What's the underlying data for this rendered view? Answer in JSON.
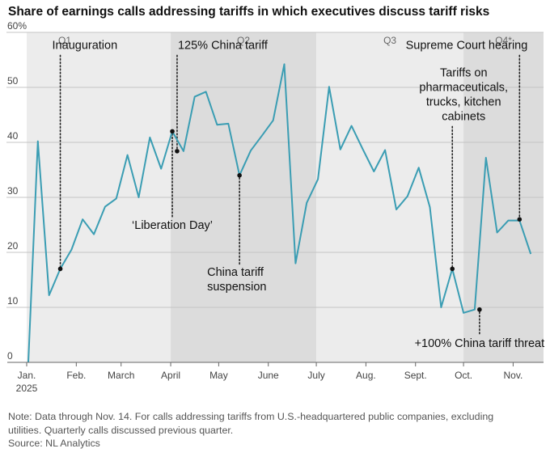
{
  "title": "Share of earnings calls addressing tariffs in which executives discuss tariff risks",
  "note": [
    "Note: Data through Nov. 14. For calls addressing tariffs from U.S.-headquartered public companies, excluding",
    "utilities. Quarterly calls discussed previous quarter."
  ],
  "source": "Source: NL Analytics",
  "chart_data": {
    "type": "line",
    "title": "Share of earnings calls addressing tariffs in which executives discuss tariff risks",
    "xlabel": "",
    "ylabel": "",
    "x_domain": [
      "2025-01-01",
      "2025-11-20"
    ],
    "ylim": [
      0,
      60
    ],
    "yticks": [
      0,
      10,
      20,
      30,
      40,
      50,
      60
    ],
    "ytick_labels": [
      "0",
      "10",
      "20",
      "30",
      "40",
      "50",
      "60%"
    ],
    "xticks": [
      {
        "date": "2025-01-01",
        "label": "Jan."
      },
      {
        "date": "2025-02-01",
        "label": "Feb."
      },
      {
        "date": "2025-03-01",
        "label": "March"
      },
      {
        "date": "2025-04-01",
        "label": "April"
      },
      {
        "date": "2025-05-01",
        "label": "May"
      },
      {
        "date": "2025-06-01",
        "label": "June"
      },
      {
        "date": "2025-07-01",
        "label": "July"
      },
      {
        "date": "2025-08-01",
        "label": "Aug."
      },
      {
        "date": "2025-09-01",
        "label": "Sept."
      },
      {
        "date": "2025-10-01",
        "label": "Oct."
      },
      {
        "date": "2025-11-01",
        "label": "Nov."
      }
    ],
    "year_label": "2025",
    "grid": true,
    "quarters": [
      {
        "label": "Q1",
        "start": "2025-01-01",
        "end": "2025-04-01",
        "shade": "#ececec"
      },
      {
        "label": "Q2",
        "start": "2025-04-01",
        "end": "2025-07-01",
        "shade": "#dcdcdc"
      },
      {
        "label": "Q3",
        "start": "2025-07-01",
        "end": "2025-10-01",
        "shade": "#ececec"
      },
      {
        "label": "Q4*",
        "start": "2025-10-01",
        "end": "2025-11-20",
        "shade": "#dcdcdc"
      }
    ],
    "series": [
      {
        "color": "#3a9db3",
        "points": [
          {
            "x": "2025-01-02",
            "y": 0
          },
          {
            "x": "2025-01-08",
            "y": 40.2
          },
          {
            "x": "2025-01-15",
            "y": 12.2
          },
          {
            "x": "2025-01-22",
            "y": 17
          },
          {
            "x": "2025-01-29",
            "y": 20.5
          },
          {
            "x": "2025-02-05",
            "y": 26
          },
          {
            "x": "2025-02-12",
            "y": 23.3
          },
          {
            "x": "2025-02-19",
            "y": 28.3
          },
          {
            "x": "2025-02-26",
            "y": 29.8
          },
          {
            "x": "2025-03-05",
            "y": 37.7
          },
          {
            "x": "2025-03-12",
            "y": 30
          },
          {
            "x": "2025-03-19",
            "y": 40.9
          },
          {
            "x": "2025-03-26",
            "y": 35.2
          },
          {
            "x": "2025-04-02",
            "y": 42
          },
          {
            "x": "2025-04-09",
            "y": 38.4
          },
          {
            "x": "2025-04-16",
            "y": 48.3
          },
          {
            "x": "2025-04-23",
            "y": 49.2
          },
          {
            "x": "2025-04-30",
            "y": 43.2
          },
          {
            "x": "2025-05-07",
            "y": 43.4
          },
          {
            "x": "2025-05-14",
            "y": 34
          },
          {
            "x": "2025-05-21",
            "y": 38.5
          },
          {
            "x": "2025-05-28",
            "y": 41.2
          },
          {
            "x": "2025-06-04",
            "y": 44
          },
          {
            "x": "2025-06-11",
            "y": 54.2
          },
          {
            "x": "2025-06-18",
            "y": 18
          },
          {
            "x": "2025-06-25",
            "y": 29
          },
          {
            "x": "2025-07-02",
            "y": 33.3
          },
          {
            "x": "2025-07-09",
            "y": 50.1
          },
          {
            "x": "2025-07-16",
            "y": 38.7
          },
          {
            "x": "2025-07-23",
            "y": 43
          },
          {
            "x": "2025-07-30",
            "y": 38.8
          },
          {
            "x": "2025-08-06",
            "y": 34.7
          },
          {
            "x": "2025-08-13",
            "y": 38.6
          },
          {
            "x": "2025-08-20",
            "y": 27.8
          },
          {
            "x": "2025-08-27",
            "y": 30.2
          },
          {
            "x": "2025-09-03",
            "y": 35.4
          },
          {
            "x": "2025-09-10",
            "y": 28.2
          },
          {
            "x": "2025-09-17",
            "y": 10
          },
          {
            "x": "2025-09-24",
            "y": 17
          },
          {
            "x": "2025-10-01",
            "y": 9
          },
          {
            "x": "2025-10-08",
            "y": 9.6
          },
          {
            "x": "2025-10-15",
            "y": 37.2
          },
          {
            "x": "2025-10-22",
            "y": 23.6
          },
          {
            "x": "2025-10-29",
            "y": 25.8
          },
          {
            "x": "2025-11-05",
            "y": 25.8
          },
          {
            "x": "2025-11-12",
            "y": 19.7
          }
        ]
      }
    ],
    "annotations": [
      {
        "lines": [
          "Inauguration"
        ],
        "x": "2025-01-22",
        "y": 17,
        "label_y": 57,
        "align": "start",
        "dx": -10
      },
      {
        "lines": [
          "125% China tariff"
        ],
        "x": "2025-04-05",
        "y": 38.4,
        "label_y": 57,
        "align": "start",
        "dx": 1
      },
      {
        "lines": [
          "‘Liberation Day’"
        ],
        "x": "2025-04-02",
        "y": 42,
        "label_y": 24.3,
        "align": "middle",
        "dx": 0
      },
      {
        "lines": [
          "China tariff",
          "suspension"
        ],
        "x": "2025-05-14",
        "y": 34,
        "label_y": 15.7,
        "align": "start",
        "dx": -40
      },
      {
        "lines": [
          "Supreme Court hearing"
        ],
        "x": "2025-11-05",
        "y": 26,
        "label_y": 57,
        "align": "end",
        "dx": 10
      },
      {
        "lines": [
          "Tariffs on",
          "pharmaceuticals,",
          "trucks, kitchen",
          "cabinets"
        ],
        "x": "2025-09-24",
        "y": 17,
        "label_y": 52,
        "align": "middle",
        "dx": 14
      },
      {
        "lines": [
          "+100% China tariff threat"
        ],
        "x": "2025-10-11",
        "y": 9.6,
        "label_y": 2.8,
        "align": "middle",
        "dx": 0
      }
    ]
  }
}
